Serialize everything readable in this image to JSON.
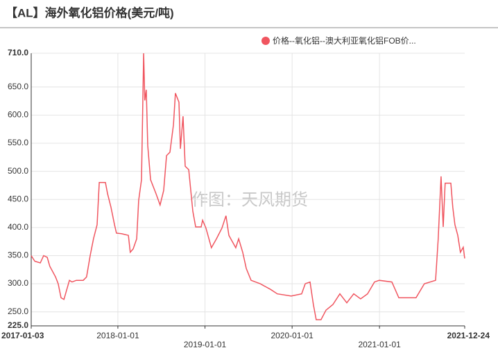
{
  "chart_data": {
    "type": "line",
    "title": "【AL】海外氧化铝价格(美元/吨)",
    "watermark": "作图：天风期货",
    "x": [
      "2017-01-03",
      "2017-01-18",
      "2017-02-10",
      "2017-02-24",
      "2017-03-11",
      "2017-03-22",
      "2017-04-15",
      "2017-04-26",
      "2017-05-08",
      "2017-05-20",
      "2017-05-31",
      "2017-06-12",
      "2017-06-23",
      "2017-07-11",
      "2017-08-09",
      "2017-08-23",
      "2017-09-07",
      "2017-09-21",
      "2017-10-06",
      "2017-10-15",
      "2017-11-10",
      "2017-11-19",
      "2017-12-03",
      "2017-12-18",
      "2017-12-26",
      "2018-01-16",
      "2018-02-14",
      "2018-02-22",
      "2018-03-06",
      "2018-03-21",
      "2018-03-29",
      "2018-04-10",
      "2018-04-19",
      "2018-04-24",
      "2018-04-30",
      "2018-05-06",
      "2018-05-18",
      "2018-06-10",
      "2018-06-27",
      "2018-07-12",
      "2018-07-24",
      "2018-08-07",
      "2018-08-22",
      "2018-08-30",
      "2018-09-14",
      "2018-09-20",
      "2018-10-01",
      "2018-10-10",
      "2018-10-25",
      "2018-11-11",
      "2018-11-23",
      "2018-12-16",
      "2018-12-22",
      "2019-01-05",
      "2019-01-28",
      "2019-02-18",
      "2019-03-13",
      "2019-03-30",
      "2019-04-11",
      "2019-05-10",
      "2019-05-22",
      "2019-06-08",
      "2019-06-23",
      "2019-07-13",
      "2019-08-20",
      "2019-10-02",
      "2019-10-31",
      "2019-12-28",
      "2020-02-10",
      "2020-02-25",
      "2020-03-16",
      "2020-03-30",
      "2020-04-11",
      "2020-05-01",
      "2020-05-22",
      "2020-06-20",
      "2020-07-19",
      "2020-08-17",
      "2020-09-15",
      "2020-10-14",
      "2020-11-12",
      "2020-12-11",
      "2020-12-31",
      "2021-02-22",
      "2021-03-23",
      "2021-06-03",
      "2021-07-08",
      "2021-08-24",
      "2021-09-04",
      "2021-09-16",
      "2021-09-25",
      "2021-10-03",
      "2021-10-27",
      "2021-11-04",
      "2021-11-13",
      "2021-11-25",
      "2021-12-06",
      "2021-12-18",
      "2021-12-24"
    ],
    "series": [
      {
        "name": "价格--氧化铝--澳大利亚氧化铝FOB价...",
        "color": "#f0555f",
        "values": [
          350,
          340,
          337,
          350,
          347,
          331,
          312,
          300,
          275,
          272,
          288,
          306,
          303,
          306,
          306,
          312,
          350,
          380,
          405,
          480,
          480,
          460,
          436,
          405,
          390,
          389,
          386,
          356,
          362,
          380,
          448,
          485,
          710,
          626,
          645,
          546,
          485,
          460,
          440,
          466,
          528,
          534,
          583,
          639,
          623,
          540,
          598,
          509,
          503,
          429,
          401,
          401,
          413,
          399,
          364,
          380,
          399,
          421,
          386,
          364,
          380,
          356,
          327,
          306,
          300,
          290,
          282,
          278,
          282,
          300,
          303,
          263,
          236,
          236,
          253,
          263,
          282,
          266,
          282,
          273,
          282,
          303,
          306,
          303,
          275,
          275,
          300,
          306,
          380,
          491,
          401,
          479,
          479,
          436,
          405,
          386,
          356,
          365,
          345
        ]
      }
    ],
    "xlim": [
      "2017-01-03",
      "2021-12-24"
    ],
    "xticks": [
      "2017-01-03",
      "2018-01-01",
      "2019-01-01",
      "2020-01-01",
      "2021-01-01",
      "2021-12-24"
    ],
    "ylim": [
      225,
      710
    ],
    "yticks": [
      {
        "value": 225,
        "label": "225.0"
      },
      {
        "value": 250,
        "label": "250.0"
      },
      {
        "value": 300,
        "label": "300.0"
      },
      {
        "value": 350,
        "label": "350.0"
      },
      {
        "value": 400,
        "label": "400.0"
      },
      {
        "value": 450,
        "label": "450.0"
      },
      {
        "value": 500,
        "label": "500.0"
      },
      {
        "value": 550,
        "label": "550.0"
      },
      {
        "value": 600,
        "label": "600.0"
      },
      {
        "value": 650,
        "label": "650.0"
      },
      {
        "value": 710,
        "label": "710.0"
      }
    ],
    "grid": true
  }
}
